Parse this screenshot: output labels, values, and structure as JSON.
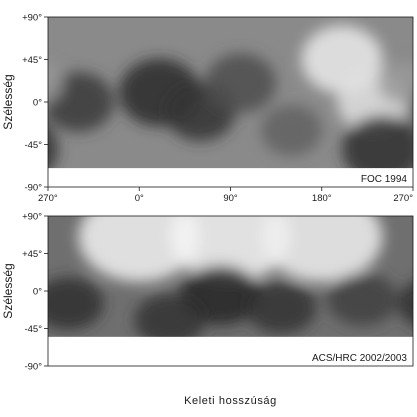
{
  "chart_data": [
    {
      "type": "heatmap",
      "title": "",
      "caption": "FOC 1994",
      "xlabel": "",
      "ylabel": "Szélesség",
      "x_ticks": [
        "270°",
        "0°",
        "90°",
        "180°",
        "270°"
      ],
      "y_ticks": [
        "+90°",
        "+45°",
        "0°",
        "-45°",
        "-90°"
      ],
      "xlim_deg": [
        270,
        630
      ],
      "ylim_deg": [
        -90,
        90
      ],
      "data_coverage_lat_deg": [
        -70,
        90
      ],
      "colormap": "grayscale",
      "grid": false,
      "features": [
        {
          "lon": 20,
          "lat": 10,
          "intensity": 0.16,
          "spread": 40
        },
        {
          "lon": 60,
          "lat": -10,
          "intensity": 0.2,
          "spread": 35
        },
        {
          "lon": 300,
          "lat": 0,
          "intensity": 0.22,
          "spread": 35
        },
        {
          "lon": 100,
          "lat": 20,
          "intensity": 0.3,
          "spread": 35
        },
        {
          "lon": 150,
          "lat": -30,
          "intensity": 0.38,
          "spread": 30
        },
        {
          "lon": 200,
          "lat": 45,
          "intensity": 0.92,
          "spread": 40
        },
        {
          "lon": 230,
          "lat": 0,
          "intensity": 0.88,
          "spread": 35
        },
        {
          "lon": 260,
          "lat": 20,
          "intensity": 0.6,
          "spread": 25
        },
        {
          "lon": 240,
          "lat": -50,
          "intensity": 0.18,
          "spread": 40
        }
      ]
    },
    {
      "type": "heatmap",
      "title": "",
      "caption": "ACS/HRC 2002/2003",
      "xlabel": "Keleti hosszúság",
      "ylabel": "Szélesség",
      "x_ticks": [],
      "y_ticks": [
        "+90°",
        "+45°",
        "0°",
        "-45°",
        "-90°"
      ],
      "xlim_deg": [
        270,
        630
      ],
      "ylim_deg": [
        -90,
        90
      ],
      "data_coverage_lat_deg": [
        -55,
        90
      ],
      "colormap": "grayscale",
      "grid": false,
      "features": [
        {
          "lon": 0,
          "lat": 65,
          "intensity": 0.95,
          "spread": 60
        },
        {
          "lon": 90,
          "lat": 65,
          "intensity": 0.96,
          "spread": 60
        },
        {
          "lon": 180,
          "lat": 65,
          "intensity": 0.94,
          "spread": 60
        },
        {
          "lon": 290,
          "lat": -15,
          "intensity": 0.18,
          "spread": 35
        },
        {
          "lon": 80,
          "lat": -5,
          "intensity": 0.15,
          "spread": 40
        },
        {
          "lon": 140,
          "lat": -20,
          "intensity": 0.2,
          "spread": 35
        },
        {
          "lon": 220,
          "lat": -10,
          "intensity": 0.25,
          "spread": 35
        },
        {
          "lon": 30,
          "lat": -35,
          "intensity": 0.2,
          "spread": 35
        }
      ]
    }
  ]
}
